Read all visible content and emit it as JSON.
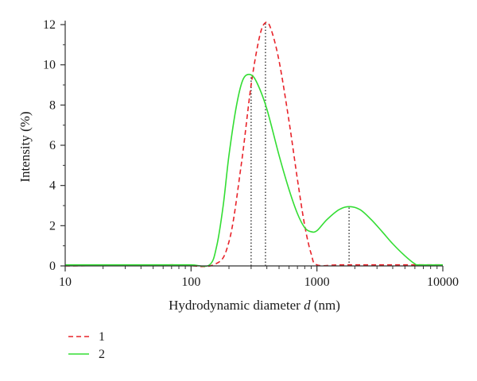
{
  "chart_data": {
    "type": "line",
    "xscale": "log",
    "xlim": [
      10,
      10000
    ],
    "ylim": [
      0,
      12
    ],
    "xlabel": "Hydrodynamic diameter d (nm)",
    "xlabel_parts": {
      "main": "Hydrodynamic diameter ",
      "var": "d",
      "unit": " (nm)"
    },
    "ylabel": "Intensity (%)",
    "x_ticks": [
      10,
      100,
      1000,
      10000
    ],
    "x_tick_labels": [
      "10",
      "100",
      "1000",
      "10000"
    ],
    "y_ticks": [
      0,
      2,
      4,
      6,
      8,
      10,
      12
    ],
    "y_tick_labels": [
      "0",
      "2",
      "4",
      "6",
      "8",
      "10",
      "12"
    ],
    "grid": false,
    "legend_position": "bottom-left",
    "series": [
      {
        "name": "1",
        "color": "#e8232a",
        "dash": "dashed",
        "x": [
          10,
          70,
          150,
          200,
          250,
          300,
          350,
          390,
          430,
          500,
          600,
          700,
          800,
          900,
          1000,
          1500,
          3000,
          6000,
          10000
        ],
        "y": [
          0,
          0.05,
          0.05,
          1.2,
          5.0,
          9.0,
          11.4,
          12.1,
          11.8,
          10.2,
          7.2,
          4.3,
          2.0,
          0.6,
          0.05,
          0.05,
          0.05,
          0.05,
          0.05
        ]
      },
      {
        "name": "2",
        "color": "#33dd33",
        "dash": "solid",
        "x": [
          10,
          30,
          60,
          100,
          140,
          160,
          180,
          200,
          230,
          260,
          300,
          340,
          400,
          500,
          600,
          700,
          800,
          900,
          1000,
          1200,
          1500,
          1800,
          2200,
          2700,
          3300,
          4000,
          5000,
          6000,
          6500,
          10000
        ],
        "y": [
          0.05,
          0.05,
          0.05,
          0.05,
          0.05,
          1.0,
          3.0,
          5.5,
          8.0,
          9.3,
          9.5,
          9.0,
          7.8,
          5.5,
          3.8,
          2.6,
          1.9,
          1.7,
          1.75,
          2.3,
          2.8,
          2.95,
          2.8,
          2.3,
          1.7,
          1.1,
          0.5,
          0.1,
          0.05,
          0.05
        ]
      }
    ],
    "peak_markers": [
      {
        "x": 300,
        "y": 9.5
      },
      {
        "x": 390,
        "y": 12.1
      },
      {
        "x": 1800,
        "y": 2.95
      }
    ]
  }
}
